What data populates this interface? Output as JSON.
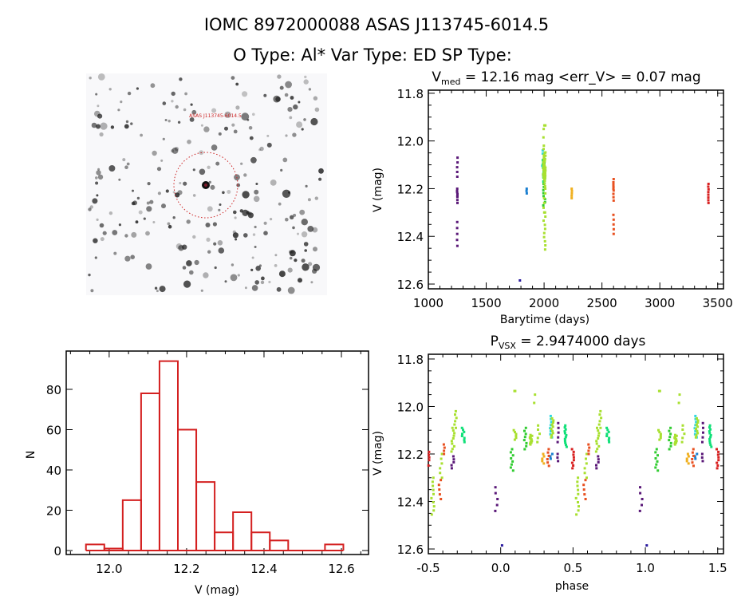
{
  "header": {
    "line1": "IOMC 8972000088    ASAS J113745-6014.5",
    "line2": "O Type: Al*  Var Type: ED  SP Type:"
  },
  "sky_image": {
    "target_label": "ASAS J113745-6014.5",
    "marker_color": "#cc2222"
  },
  "chart_data": [
    {
      "id": "light_curve",
      "type": "scatter",
      "title_main": "V",
      "title_sub": "med",
      "title_rest": " = 12.16 mag <err_V> = 0.07 mag",
      "xlabel": "Barytime (days)",
      "ylabel": "V (mag)",
      "xlim": [
        1000,
        3550
      ],
      "ylim": [
        12.62,
        11.787
      ],
      "xticks": [
        "1000",
        "1500",
        "2000",
        "2500",
        "3000",
        "3500"
      ],
      "yticks": [
        "11.8",
        "12.0",
        "12.2",
        "12.4",
        "12.6"
      ]
    },
    {
      "id": "phase_curve",
      "type": "scatter",
      "title_main": "P",
      "title_sub": "VSX",
      "title_rest": " = 2.9474000 days",
      "period_days": 2.9474,
      "xlabel": "phase",
      "ylabel": "V (mag)",
      "xlim": [
        -0.5,
        1.54
      ],
      "ylim": [
        12.62,
        11.78
      ],
      "xticks": [
        "-0.5",
        "0.0",
        "0.5",
        "1.0",
        "1.5"
      ],
      "yticks": [
        "11.8",
        "12.0",
        "12.2",
        "12.4",
        "12.6"
      ]
    },
    {
      "id": "histogram",
      "type": "bar",
      "xlabel": "V (mag)",
      "ylabel": "N",
      "bin_start": 11.94,
      "bin_width": 0.0475,
      "values": [
        3,
        1,
        25,
        78,
        94,
        60,
        34,
        9,
        19,
        9,
        5,
        0,
        0,
        3
      ],
      "xlim": [
        11.889,
        12.67
      ],
      "ylim": [
        -1.98,
        99
      ],
      "xticks": [
        "12.0",
        "12.2",
        "12.4",
        "12.6"
      ],
      "yticks": [
        "0",
        "20",
        "40",
        "60",
        "80"
      ],
      "bar_color": "#d42020"
    }
  ],
  "seasons": [
    {
      "color": "#5a1878",
      "time": 1250,
      "clusters": [
        [
          -0.33,
          12.21,
          12.26,
          5
        ],
        [
          -0.03,
          12.34,
          12.44,
          5
        ],
        [
          0.39,
          12.07,
          12.15,
          5
        ],
        [
          0.39,
          12.2,
          12.23,
          3
        ]
      ]
    },
    {
      "color": "#2a1aa0",
      "time": 1790,
      "clusters": [
        [
          0.01,
          12.585,
          12.585,
          1
        ]
      ]
    },
    {
      "color": "#1a7fd0",
      "time": 1850,
      "clusters": [
        [
          0.35,
          12.2,
          12.22,
          3
        ]
      ]
    },
    {
      "color": "#30d8e0",
      "time": 1993,
      "clusters": [
        [
          0.35,
          12.04,
          12.13,
          8
        ]
      ]
    },
    {
      "color": "#10e078",
      "time": 1998,
      "clusters": [
        [
          -0.26,
          12.09,
          12.15,
          8
        ],
        [
          0.45,
          12.08,
          12.17,
          12
        ]
      ]
    },
    {
      "color": "#30cc30",
      "time": 2000,
      "clusters": [
        [
          0.08,
          12.18,
          12.27,
          8
        ],
        [
          0.17,
          12.09,
          12.18,
          8
        ]
      ]
    },
    {
      "color": "#a8e030",
      "time": 2003,
      "clusters": [
        [
          -0.47,
          12.3,
          12.455,
          10
        ],
        [
          -0.415,
          12.2,
          12.3,
          6
        ],
        [
          -0.33,
          12.09,
          12.19,
          10
        ],
        [
          -0.31,
          12.02,
          12.09,
          6
        ],
        [
          0.1,
          11.935,
          11.935,
          2
        ],
        [
          0.1,
          12.1,
          12.14,
          6
        ],
        [
          0.21,
          12.12,
          12.16,
          12
        ],
        [
          0.23,
          11.95,
          11.985,
          2
        ],
        [
          0.26,
          12.08,
          12.15,
          5
        ],
        [
          0.355,
          12.05,
          12.13,
          10
        ]
      ]
    },
    {
      "color": "#f0b020",
      "time": 2240,
      "clusters": [
        [
          0.29,
          12.2,
          12.24,
          5
        ]
      ]
    },
    {
      "color": "#e85020",
      "time": 2600,
      "clusters": [
        [
          -0.42,
          12.31,
          12.39,
          5
        ],
        [
          -0.395,
          12.16,
          12.2,
          4
        ],
        [
          0.33,
          12.18,
          12.25,
          6
        ]
      ]
    },
    {
      "color": "#d82020",
      "time": 3420,
      "clusters": [
        [
          0.5,
          12.18,
          12.26,
          8
        ]
      ]
    }
  ]
}
